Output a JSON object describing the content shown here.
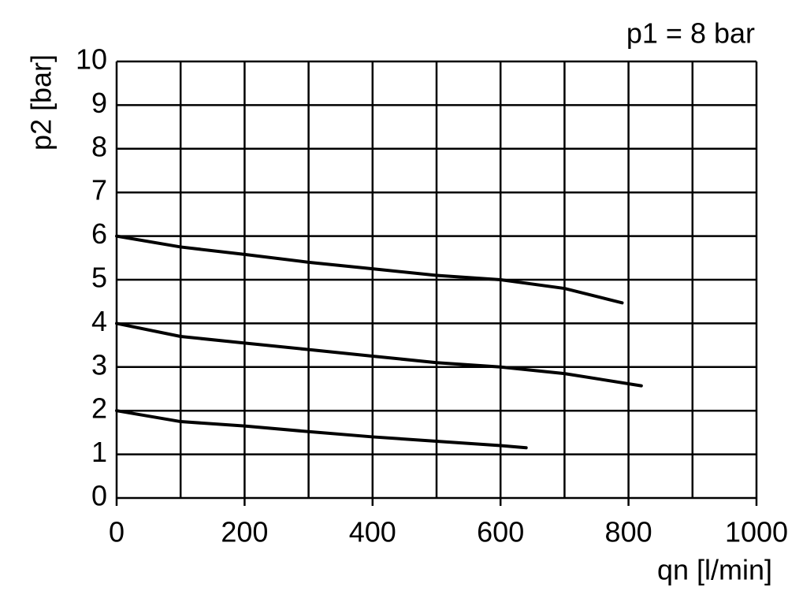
{
  "chart_data": {
    "type": "line",
    "annotation": "p1 = 8 bar",
    "y_label": "p2 [bar]",
    "x_label": "qn [l/min]",
    "xlim": [
      0,
      1000
    ],
    "xticks": [
      0,
      200,
      400,
      600,
      800,
      1000
    ],
    "xgridlines": [
      0,
      100,
      200,
      300,
      400,
      500,
      600,
      700,
      800,
      900,
      1000
    ],
    "ylim": [
      0,
      10
    ],
    "yticks": [
      0,
      1,
      2,
      3,
      4,
      5,
      6,
      7,
      8,
      9,
      10
    ],
    "grid": true,
    "series": [
      {
        "color": "#000000",
        "x": [
          0,
          100,
          200,
          300,
          400,
          500,
          600,
          700,
          790
        ],
        "values": [
          6.0,
          5.75,
          5.58,
          5.4,
          5.25,
          5.1,
          5.0,
          4.8,
          4.47
        ]
      },
      {
        "color": "#000000",
        "x": [
          0,
          100,
          200,
          300,
          400,
          500,
          600,
          700,
          820
        ],
        "values": [
          4.0,
          3.7,
          3.55,
          3.4,
          3.25,
          3.1,
          3.0,
          2.85,
          2.57
        ]
      },
      {
        "color": "#000000",
        "x": [
          0,
          100,
          200,
          300,
          400,
          500,
          600,
          640
        ],
        "values": [
          2.0,
          1.75,
          1.65,
          1.52,
          1.4,
          1.3,
          1.2,
          1.15
        ]
      }
    ]
  }
}
